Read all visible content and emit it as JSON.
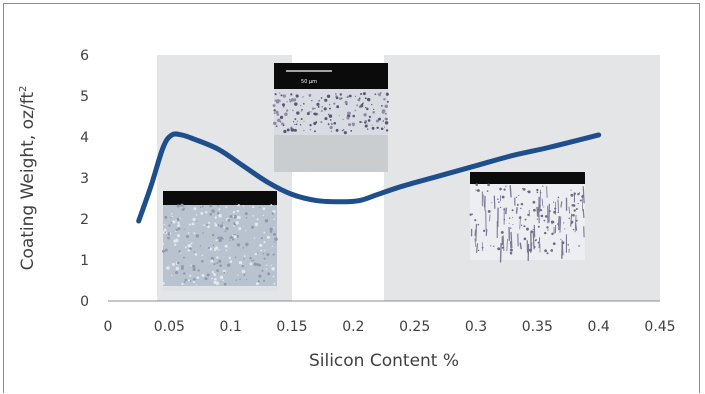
{
  "chart_data": {
    "type": "line",
    "title": "",
    "xlabel": "Silicon Content %",
    "ylabel_main": "Coating Weight, oz/ft",
    "ylabel_sup": "2",
    "xlim": [
      0,
      0.45
    ],
    "ylim": [
      0,
      6
    ],
    "x_ticks": [
      "0",
      "0.05",
      "0.1",
      "0.15",
      "0.2",
      "0.25",
      "0.3",
      "0.35",
      "0.4",
      "0.45"
    ],
    "x_tick_values": [
      0,
      0.05,
      0.1,
      0.15,
      0.2,
      0.25,
      0.3,
      0.35,
      0.4,
      0.45
    ],
    "y_ticks": [
      "0",
      "1",
      "2",
      "3",
      "4",
      "5",
      "6"
    ],
    "y_tick_values": [
      0,
      1,
      2,
      3,
      4,
      5,
      6
    ],
    "shaded_regions": [
      {
        "from": 0.04,
        "to": 0.15
      },
      {
        "from": 0.225,
        "to": 0.45
      }
    ],
    "series": [
      {
        "color": "#1f4e8c",
        "x": [
          0.025,
          0.035,
          0.045,
          0.052,
          0.06,
          0.07,
          0.09,
          0.11,
          0.13,
          0.15,
          0.17,
          0.19,
          0.205,
          0.22,
          0.24,
          0.27,
          0.3,
          0.33,
          0.36,
          0.4
        ],
        "y": [
          1.95,
          2.8,
          3.75,
          4.05,
          4.05,
          3.95,
          3.7,
          3.3,
          2.9,
          2.6,
          2.45,
          2.42,
          2.45,
          2.6,
          2.8,
          3.05,
          3.3,
          3.55,
          3.75,
          4.05
        ]
      }
    ],
    "micrographs": [
      {
        "name": "micrograph-low-silicon",
        "style": "dense",
        "scale_label": ""
      },
      {
        "name": "micrograph-sandelin-peak",
        "style": "layered",
        "scale_label": "50 μm"
      },
      {
        "name": "micrograph-high-silicon",
        "style": "columnar",
        "scale_label": ""
      }
    ],
    "grid": false,
    "legend": "none"
  },
  "colors": {
    "shade": "#e4e5e7",
    "line": "#1f4e8c",
    "axis": "#8c8c8c",
    "text": "#404040"
  }
}
